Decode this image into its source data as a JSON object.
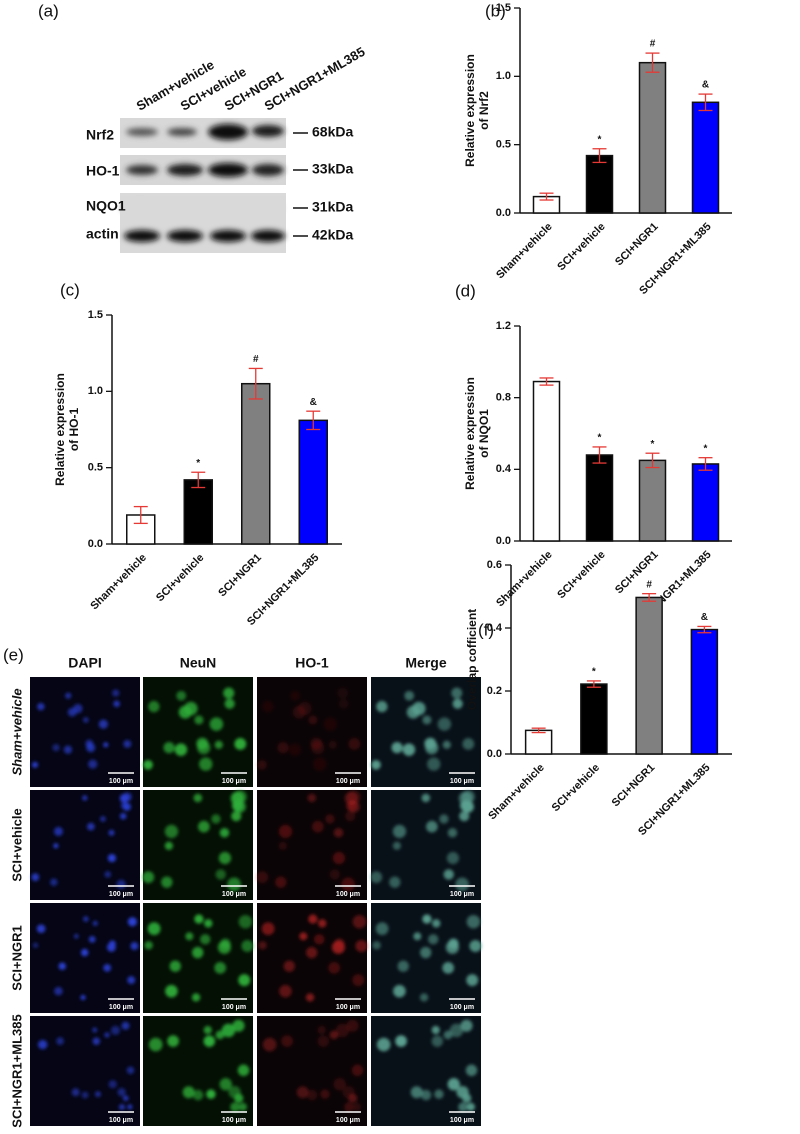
{
  "blot": {
    "panel": "(a)",
    "lanes": [
      "Sham+vehicle",
      "SCI+vehicle",
      "SCI+NGR1",
      "SCI+NGR1+ML385"
    ],
    "rows": [
      {
        "protein": "Nrf2",
        "weight": "68kDa"
      },
      {
        "protein": "HO-1",
        "weight": "33kDa"
      },
      {
        "protein": "NQO1",
        "weight": "31kDa"
      },
      {
        "protein": "actin",
        "weight": "42kDa"
      }
    ]
  },
  "microscopy": {
    "panel": "(e)",
    "channels": [
      "DAPI",
      "NeuN",
      "HO-1",
      "Merge"
    ],
    "groups": [
      "Sham+vehicle",
      "SCI+vehicle",
      "SCI+NGR1",
      "SCI+NGR1+ML385"
    ],
    "scale_bar": "100 μm"
  },
  "chart_data": [
    {
      "type": "bar",
      "panel": "(b)",
      "ylabel": [
        "Relative expression",
        "of Nrf2"
      ],
      "categories": [
        "Sham+vehicle",
        "SCI+vehicle",
        "SCI+NGR1",
        "SCI+NGR1+ML385"
      ],
      "values": [
        0.12,
        0.42,
        1.1,
        0.81
      ],
      "errors": [
        0.025,
        0.05,
        0.07,
        0.06
      ],
      "annotations": [
        null,
        "*",
        "#",
        "&"
      ],
      "colors": [
        "#ffffff",
        "#000000",
        "#808080",
        "#0000ff"
      ],
      "error_color": "#e53935",
      "ylim": [
        0,
        1.5
      ],
      "yticks": [
        {
          "value": 0,
          "label": "0.0"
        },
        0.5,
        {
          "value": 1,
          "label": "1.0"
        },
        1.5
      ]
    },
    {
      "type": "bar",
      "panel": "(c)",
      "ylabel": [
        "Relative expression",
        "of HO-1"
      ],
      "categories": [
        "Sham+vehicle",
        "SCI+vehicle",
        "SCI+NGR1",
        "SCI+NGR1+ML385"
      ],
      "values": [
        0.19,
        0.42,
        1.05,
        0.81
      ],
      "errors": [
        0.055,
        0.05,
        0.1,
        0.06
      ],
      "annotations": [
        null,
        "*",
        "#",
        "&"
      ],
      "colors": [
        "#ffffff",
        "#000000",
        "#808080",
        "#0000ff"
      ],
      "error_color": "#e53935",
      "ylim": [
        0,
        1.5
      ],
      "yticks": [
        {
          "value": 0,
          "label": "0.0"
        },
        0.5,
        {
          "value": 1,
          "label": "1.0"
        },
        1.5
      ]
    },
    {
      "type": "bar",
      "panel": "(d)",
      "ylabel": [
        "Relative expression",
        "of NQO1"
      ],
      "categories": [
        "Sham+vehicle",
        "SCI+vehicle",
        "SCI+NGR1",
        "SCI+NGR1+ML385"
      ],
      "values": [
        0.89,
        0.48,
        0.45,
        0.43
      ],
      "errors": [
        0.02,
        0.045,
        0.04,
        0.035
      ],
      "annotations": [
        null,
        "*",
        "*",
        "*"
      ],
      "colors": [
        "#ffffff",
        "#000000",
        "#808080",
        "#0000ff"
      ],
      "error_color": "#e53935",
      "ylim": [
        0,
        1.2
      ],
      "yticks": [
        {
          "value": 0,
          "label": "0.0"
        },
        0.4,
        0.8,
        1.2
      ]
    },
    {
      "type": "bar",
      "panel": "(f)",
      "ylabel": [
        "Overlap cofficient"
      ],
      "categories": [
        "Sham+vehicle",
        "SCI+vehicle",
        "SCI+NGR1",
        "SCI+NGR1+ML385"
      ],
      "values": [
        0.075,
        0.222,
        0.497,
        0.395
      ],
      "errors": [
        0.007,
        0.01,
        0.012,
        0.01
      ],
      "annotations": [
        null,
        "*",
        "#",
        "&"
      ],
      "colors": [
        "#ffffff",
        "#000000",
        "#808080",
        "#0000ff"
      ],
      "error_color": "#e53935",
      "ylim": [
        0,
        0.6
      ],
      "yticks": [
        {
          "value": 0,
          "label": "0.0"
        },
        0.2,
        0.4,
        0.6
      ]
    }
  ]
}
